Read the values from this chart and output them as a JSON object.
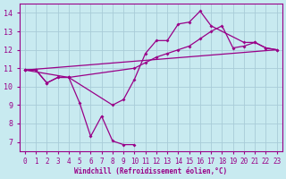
{
  "xlabel": "Windchill (Refroidissement éolien,°C)",
  "bg_color": "#c8eaf0",
  "grid_color": "#a8ccd8",
  "line_color": "#990088",
  "xlim": [
    -0.5,
    23.5
  ],
  "ylim": [
    6.5,
    14.5
  ],
  "yticks": [
    7,
    8,
    9,
    10,
    11,
    12,
    13,
    14
  ],
  "xticks": [
    0,
    1,
    2,
    3,
    4,
    5,
    6,
    7,
    8,
    9,
    10,
    11,
    12,
    13,
    14,
    15,
    16,
    17,
    18,
    19,
    20,
    21,
    22,
    23
  ],
  "lines": [
    {
      "x": [
        0,
        1,
        2,
        3,
        4,
        5,
        6,
        7,
        8,
        9,
        10
      ],
      "y": [
        10.9,
        10.9,
        10.2,
        10.5,
        10.5,
        9.1,
        7.3,
        8.4,
        7.05,
        6.85,
        6.85
      ],
      "marker": true
    },
    {
      "x": [
        0,
        1,
        2,
        3,
        4,
        8,
        9,
        10,
        11,
        12,
        13,
        14,
        15,
        16,
        17,
        20,
        21,
        22,
        23
      ],
      "y": [
        10.9,
        10.9,
        10.2,
        10.5,
        10.5,
        9.0,
        9.3,
        10.4,
        11.8,
        12.5,
        12.5,
        13.4,
        13.5,
        14.1,
        13.3,
        12.4,
        12.4,
        12.1,
        12.0
      ],
      "marker": true
    },
    {
      "x": [
        0,
        4,
        10,
        11,
        12,
        13,
        14,
        15,
        16,
        17,
        18,
        19,
        20,
        21,
        22,
        23
      ],
      "y": [
        10.9,
        10.5,
        11.0,
        11.3,
        11.6,
        11.8,
        12.0,
        12.2,
        12.6,
        13.0,
        13.3,
        12.1,
        12.2,
        12.4,
        12.1,
        12.0
      ],
      "marker": true
    },
    {
      "x": [
        0,
        23
      ],
      "y": [
        10.9,
        12.0
      ],
      "marker": false
    }
  ]
}
